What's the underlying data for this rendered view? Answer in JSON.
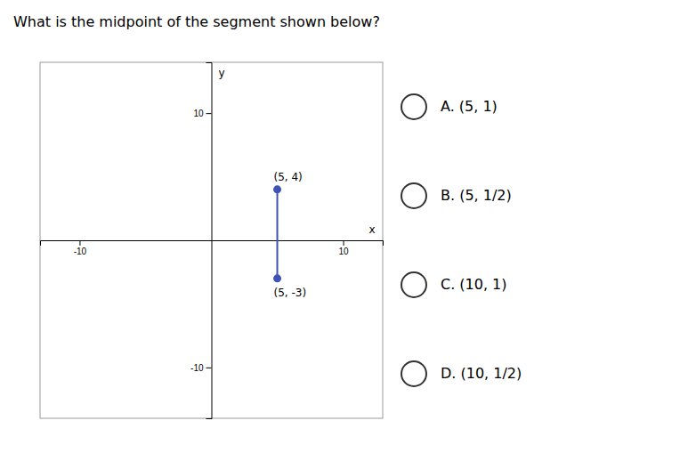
{
  "chart_data": {
    "type": "line",
    "title": "What is the midpoint of the segment shown below?",
    "x": [
      5,
      5
    ],
    "series": [
      {
        "color": "#3d52b5",
        "values": [
          4,
          -3
        ],
        "value_labels": [
          "(5, 4)",
          "(5, -3)"
        ],
        "marker": "circle",
        "line_style": "solid"
      }
    ],
    "data_labels": true,
    "xlim": [
      -13,
      13
    ],
    "ylim": [
      -14,
      14
    ],
    "xticks": [
      -10,
      10
    ],
    "yticks": [
      -10,
      10
    ],
    "x_label": "x",
    "y_label": "y",
    "grid": false,
    "annotations": [
      "A. (5, 1)",
      "B. (5, 1/2)",
      "C. (10, 1)",
      "D. (10, 1/2)"
    ]
  }
}
